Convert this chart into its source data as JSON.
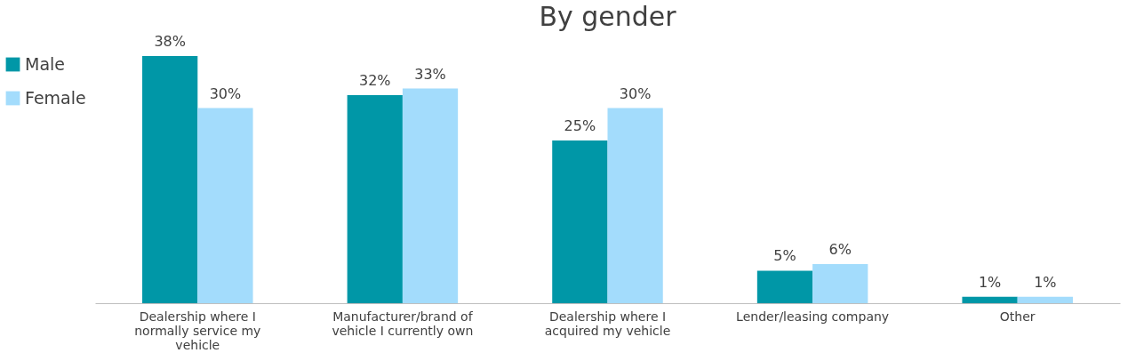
{
  "chart_data": {
    "type": "bar",
    "title": "By gender",
    "categories": [
      "Dealership where I normally service my vehicle",
      "Manufacturer/brand of vehicle I currently own",
      "Dealership where I acquired my vehicle",
      "Lender/leasing company",
      "Other"
    ],
    "series": [
      {
        "name": "Male",
        "color": "#0097a7",
        "values": [
          38,
          32,
          25,
          5,
          1
        ],
        "value_labels": [
          "38%",
          "32%",
          "25%",
          "5%",
          "1%"
        ]
      },
      {
        "name": "Female",
        "color": "#a3dcfc",
        "values": [
          30,
          33,
          30,
          6,
          1
        ],
        "value_labels": [
          "30%",
          "33%",
          "30%",
          "6%",
          "1%"
        ]
      }
    ],
    "legend": "left",
    "grid": false
  }
}
